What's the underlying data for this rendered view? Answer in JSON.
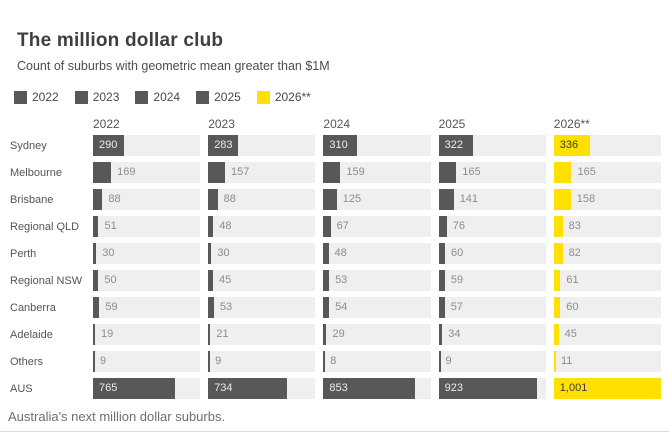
{
  "header": {
    "title": "The million dollar club",
    "subtitle": "Count of suburbs with geometric mean greater than $1M"
  },
  "legend": [
    {
      "label": "2022",
      "color": "#58585A"
    },
    {
      "label": "2023",
      "color": "#58585A"
    },
    {
      "label": "2024",
      "color": "#58585A"
    },
    {
      "label": "2025",
      "color": "#58585A"
    },
    {
      "label": "2026**",
      "color": "#FFE000"
    }
  ],
  "chart_data": {
    "type": "bar",
    "orientation": "horizontal",
    "title": "The million dollar club",
    "subtitle": "Count of suburbs with geometric mean greater than $1M",
    "columns": [
      "2022",
      "2023",
      "2024",
      "2025",
      "2026**"
    ],
    "categories": [
      "Sydney",
      "Melbourne",
      "Brisbane",
      "Regional QLD",
      "Perth",
      "Regional NSW",
      "Canberra",
      "Adelaide",
      "Others",
      "AUS"
    ],
    "series": [
      {
        "name": "2022",
        "color": "#58585A",
        "values": [
          290,
          169,
          88,
          51,
          30,
          50,
          59,
          19,
          9,
          765
        ]
      },
      {
        "name": "2023",
        "color": "#58585A",
        "values": [
          283,
          157,
          88,
          48,
          30,
          45,
          53,
          21,
          9,
          734
        ]
      },
      {
        "name": "2024",
        "color": "#58585A",
        "values": [
          310,
          159,
          125,
          67,
          48,
          53,
          54,
          29,
          8,
          853
        ]
      },
      {
        "name": "2025",
        "color": "#58585A",
        "values": [
          322,
          165,
          141,
          76,
          60,
          59,
          57,
          34,
          9,
          923
        ]
      },
      {
        "name": "2026**",
        "color": "#FFE000",
        "values": [
          336,
          165,
          158,
          83,
          82,
          61,
          60,
          45,
          11,
          1001
        ]
      }
    ],
    "value_range": [
      0,
      1001
    ],
    "track_color": "#EFEFEF",
    "grid": false,
    "legend_position": "top"
  },
  "footer": {
    "caption": "Australia's next million dollar suburbs."
  }
}
